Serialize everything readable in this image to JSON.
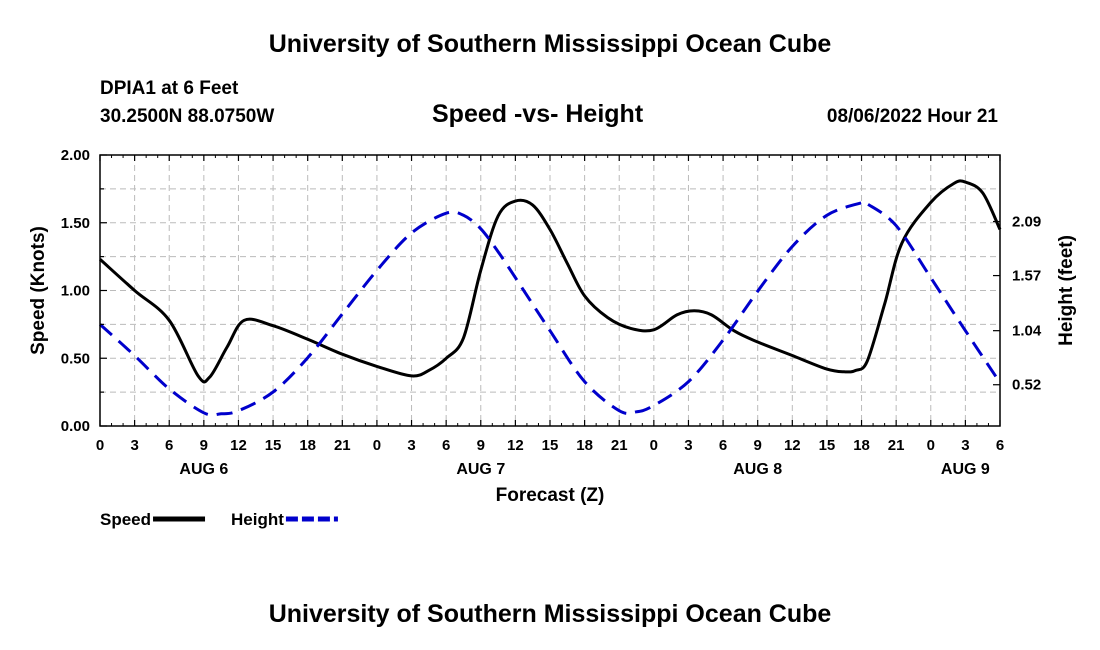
{
  "page": {
    "title_top": "University of Southern Mississippi Ocean Cube",
    "title_bottom": "University of Southern Mississippi Ocean Cube",
    "station": "DPIA1 at 6 Feet",
    "coords": "30.2500N  88.0750W",
    "date_hour": "08/06/2022 Hour 21"
  },
  "chart_data": {
    "type": "line",
    "title": "Speed -vs- Height",
    "xlabel": "Forecast (Z)",
    "ylabel": "Speed (Knots)",
    "y2label": "Height (feet)",
    "xlim": [
      0,
      78
    ],
    "ylim": [
      0,
      2
    ],
    "y2lim": [
      0.123,
      2.73
    ],
    "x_tick_step_hours": 3,
    "x_tick_labels": [
      "0",
      "3",
      "6",
      "9",
      "12",
      "15",
      "18",
      "21",
      "0",
      "3",
      "6",
      "9",
      "12",
      "15",
      "18",
      "21",
      "0",
      "3",
      "6",
      "9",
      "12",
      "15",
      "18",
      "21",
      "0",
      "3",
      "6"
    ],
    "y_ticks": [
      "0.00",
      "0.50",
      "1.00",
      "1.50",
      "2.00"
    ],
    "y2_ticks": [
      "0.52",
      "1.04",
      "1.57",
      "2.09"
    ],
    "y2_tick_values": [
      0.52,
      1.04,
      1.57,
      2.09
    ],
    "day_labels": [
      {
        "label": "AUG 6",
        "hour": 9
      },
      {
        "label": "AUG 7",
        "hour": 33
      },
      {
        "label": "AUG 8",
        "hour": 57
      },
      {
        "label": "AUG 9",
        "hour": 75
      }
    ],
    "grid": true,
    "legend_position": "bottom-left",
    "series": [
      {
        "name": "Speed",
        "color": "#000000",
        "style": "solid",
        "axis": "left",
        "x": [
          0,
          3,
          6,
          8.5,
          9.5,
          11,
          12.5,
          15,
          18,
          21,
          24,
          27,
          28.5,
          30,
          31.5,
          33,
          34.5,
          36,
          37.5,
          39,
          40.5,
          42,
          44,
          46,
          48,
          50,
          51.5,
          53,
          55,
          57,
          60,
          63,
          64.5,
          65.5,
          66.5,
          68,
          69.5,
          72,
          74,
          75,
          76.5,
          78
        ],
        "values": [
          1.23,
          1.0,
          0.78,
          0.37,
          0.36,
          0.58,
          0.78,
          0.74,
          0.64,
          0.53,
          0.44,
          0.37,
          0.41,
          0.5,
          0.65,
          1.15,
          1.55,
          1.66,
          1.63,
          1.45,
          1.2,
          0.96,
          0.8,
          0.72,
          0.71,
          0.82,
          0.85,
          0.82,
          0.7,
          0.62,
          0.52,
          0.42,
          0.4,
          0.41,
          0.48,
          0.9,
          1.35,
          1.65,
          1.79,
          1.8,
          1.72,
          1.45
        ]
      },
      {
        "name": "Height",
        "color": "#0000cc",
        "style": "dashed",
        "axis": "right",
        "x": [
          0,
          3,
          6,
          9,
          10.5,
          12,
          15,
          18,
          21,
          24,
          27,
          30,
          31.5,
          33,
          34.5,
          36,
          39,
          42,
          45,
          46.5,
          48,
          51,
          54,
          57,
          60,
          63,
          66,
          66.5,
          69,
          72,
          75,
          78
        ],
        "values": [
          1.1,
          0.8,
          0.48,
          0.25,
          0.24,
          0.27,
          0.45,
          0.78,
          1.2,
          1.62,
          1.98,
          2.17,
          2.15,
          2.02,
          1.8,
          1.55,
          1.04,
          0.55,
          0.27,
          0.26,
          0.32,
          0.55,
          0.95,
          1.42,
          1.85,
          2.15,
          2.27,
          2.26,
          2.05,
          1.55,
          1.04,
          0.54
        ]
      }
    ]
  }
}
